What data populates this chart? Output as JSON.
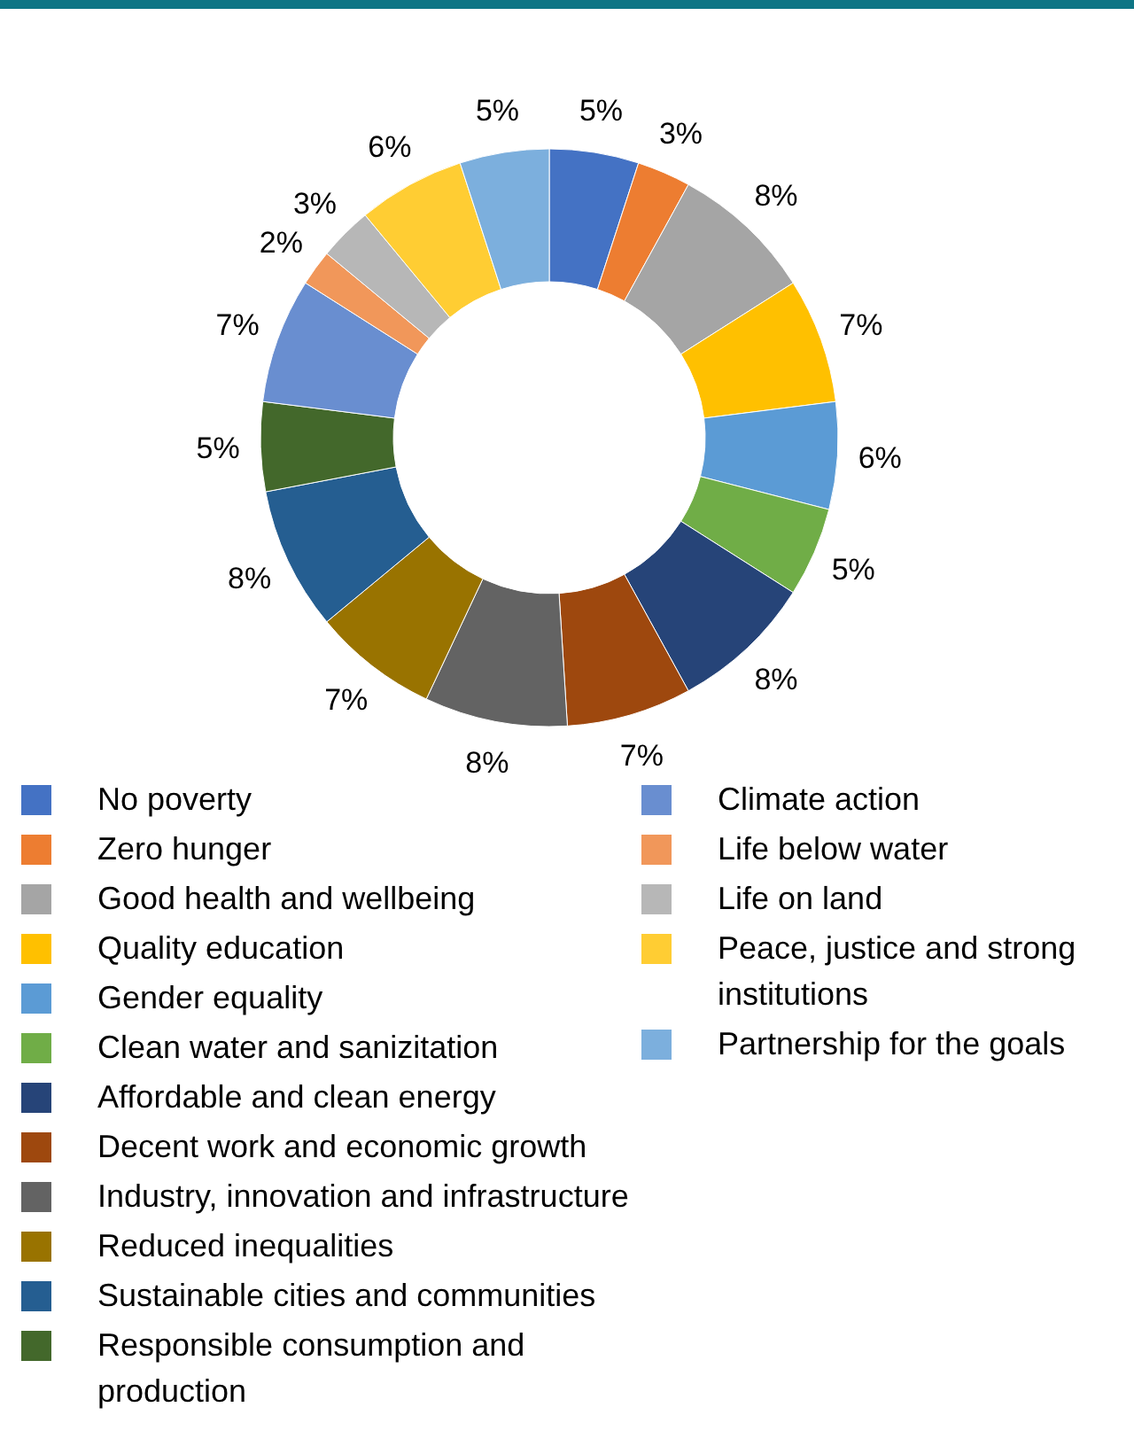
{
  "chart_data": {
    "type": "donut",
    "categories": [
      "No poverty",
      "Zero hunger",
      "Good health and wellbeing",
      "Quality education",
      "Gender equality",
      "Clean water and sanizitation",
      "Affordable and clean energy",
      "Decent work and economic growth",
      "Industry, innovation and infrastructure",
      "Reduced inequalities",
      "Sustainable cities and communities",
      "Responsible consumption and production",
      "Climate action",
      "Life below water",
      "Life on land",
      "Peace, justice and strong institutions",
      "Partnership for the goals"
    ],
    "values": [
      5,
      3,
      8,
      7,
      6,
      5,
      8,
      7,
      8,
      7,
      8,
      5,
      7,
      2,
      3,
      6,
      5
    ],
    "value_labels": [
      "5%",
      "3%",
      "8%",
      "7%",
      "6%",
      "5%",
      "8%",
      "7%",
      "8%",
      "7%",
      "8%",
      "5%",
      "7%",
      "2%",
      "3%",
      "6%",
      "5%"
    ],
    "colors": [
      "#4472c4",
      "#ed7d31",
      "#a5a5a5",
      "#ffc000",
      "#5b9bd5",
      "#70ad47",
      "#264478",
      "#9e480e",
      "#636363",
      "#997300",
      "#255e91",
      "#43682b",
      "#698ed0",
      "#f1975a",
      "#b7b7b7",
      "#ffcd33",
      "#7cafdd"
    ],
    "legend": "bottom"
  }
}
